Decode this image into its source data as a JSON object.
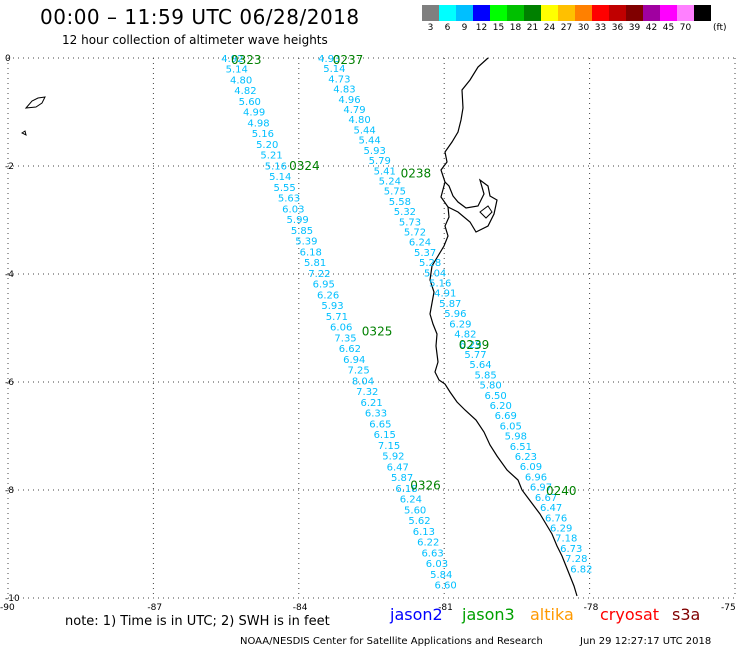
{
  "header": {
    "title": "00:00 – 11:59 UTC 06/28/2018",
    "subtitle": "12 hour collection of altimeter wave heights"
  },
  "legend": {
    "unit": "(ft)",
    "bins": [
      {
        "label": "3",
        "color": "#7f7f7f"
      },
      {
        "label": "6",
        "color": "#00ffff"
      },
      {
        "label": "9",
        "color": "#00bfff"
      },
      {
        "label": "12",
        "color": "#0000ff"
      },
      {
        "label": "15",
        "color": "#00ff00"
      },
      {
        "label": "18",
        "color": "#00c000"
      },
      {
        "label": "21",
        "color": "#008000"
      },
      {
        "label": "24",
        "color": "#ffff00"
      },
      {
        "label": "27",
        "color": "#ffc000"
      },
      {
        "label": "30",
        "color": "#ff8000"
      },
      {
        "label": "33",
        "color": "#ff0000"
      },
      {
        "label": "36",
        "color": "#c00000"
      },
      {
        "label": "39",
        "color": "#800000"
      },
      {
        "label": "42",
        "color": "#a000a0"
      },
      {
        "label": "45",
        "color": "#ff00ff"
      },
      {
        "label": "70",
        "color": "#ff80ff"
      },
      {
        "label": "",
        "color": "#000000"
      }
    ]
  },
  "map": {
    "lon_range": [
      -90,
      -75
    ],
    "lat_range": [
      -10,
      0
    ],
    "lon_ticks": [
      "-90",
      "-87",
      "-84",
      "-81",
      "-78",
      "-75"
    ],
    "lat_ticks": [
      "0",
      "-2",
      "-4",
      "-6",
      "-8",
      "-10"
    ],
    "track_label_color": "#008000",
    "value_color": "#00bfff",
    "tracks": [
      {
        "time_labels": [
          {
            "text": "0323",
            "lon": -85.4,
            "lat": -0.02
          },
          {
            "text": "0324",
            "lon": -84.2,
            "lat": -1.98
          },
          {
            "text": "0325",
            "lon": -82.7,
            "lat": -5.05
          },
          {
            "text": "0326",
            "lon": -81.7,
            "lat": -7.9
          }
        ],
        "start": {
          "lon": -85.6,
          "lat": 0.0
        },
        "end": {
          "lon": -81.2,
          "lat": -9.75
        },
        "values": [
          "4.92",
          "5.14",
          "4.80",
          "4.82",
          "5.60",
          "4.99",
          "4.98",
          "5.16",
          "5.20",
          "5.21",
          "5.16",
          "5.14",
          "5.55",
          "5.63",
          "6.03",
          "5.99",
          "5.85",
          "5.39",
          "6.18",
          "5.81",
          "7.22",
          "6.95",
          "6.26",
          "5.93",
          "5.71",
          "6.06",
          "7.35",
          "6.62",
          "6.94",
          "7.25",
          "8.04",
          "7.32",
          "6.21",
          "6.33",
          "6.65",
          "6.15",
          "7.15",
          "5.92",
          "6.47",
          "5.87",
          "6.18",
          "6.24",
          "5.60",
          "5.62",
          "6.13",
          "6.22",
          "6.63",
          "6.03",
          "5.84",
          "6.60"
        ]
      },
      {
        "time_labels": [
          {
            "text": "0237",
            "lon": -83.3,
            "lat": -0.02
          },
          {
            "text": "0238",
            "lon": -81.9,
            "lat": -2.12
          },
          {
            "text": "0239",
            "lon": -80.7,
            "lat": -5.3
          },
          {
            "text": "0240",
            "lon": -78.9,
            "lat": -8.0
          }
        ],
        "start": {
          "lon": -83.6,
          "lat": 0.0
        },
        "end": {
          "lon": -78.4,
          "lat": -9.45
        },
        "values": [
          "4.93",
          "5.14",
          "4.73",
          "4.83",
          "4.96",
          "4.79",
          "4.80",
          "5.44",
          "5.44",
          "5.93",
          "5.79",
          "5.41",
          "5.24",
          "5.75",
          "5.58",
          "5.32",
          "5.73",
          "5.72",
          "6.24",
          "5.37",
          "5.28",
          "5.04",
          "5.16",
          "4.91",
          "5.87",
          "5.96",
          "6.29",
          "4.82",
          "6.29",
          "5.77",
          "5.64",
          "5.85",
          "5.80",
          "6.50",
          "6.20",
          "6.69",
          "6.05",
          "5.98",
          "6.51",
          "6.23",
          "6.09",
          "6.96",
          "6.97",
          "6.67",
          "6.47",
          "6.76",
          "6.29",
          "7.18",
          "6.73",
          "7.28",
          "6.82"
        ]
      }
    ]
  },
  "footer": {
    "note": "note: 1) Time is in UTC; 2) SWH is in feet",
    "satellites": [
      {
        "name": "jason2",
        "color": "#0000ff"
      },
      {
        "name": "jason3",
        "color": "#00a000"
      },
      {
        "name": "altika",
        "color": "#ff9900"
      },
      {
        "name": "cryosat",
        "color": "#ff0000"
      },
      {
        "name": "s3a",
        "color": "#800000"
      }
    ],
    "credit": "NOAA/NESDIS Center for Satellite Applications and Research",
    "generated": "Jun 29 12:27:17 UTC 2018"
  }
}
